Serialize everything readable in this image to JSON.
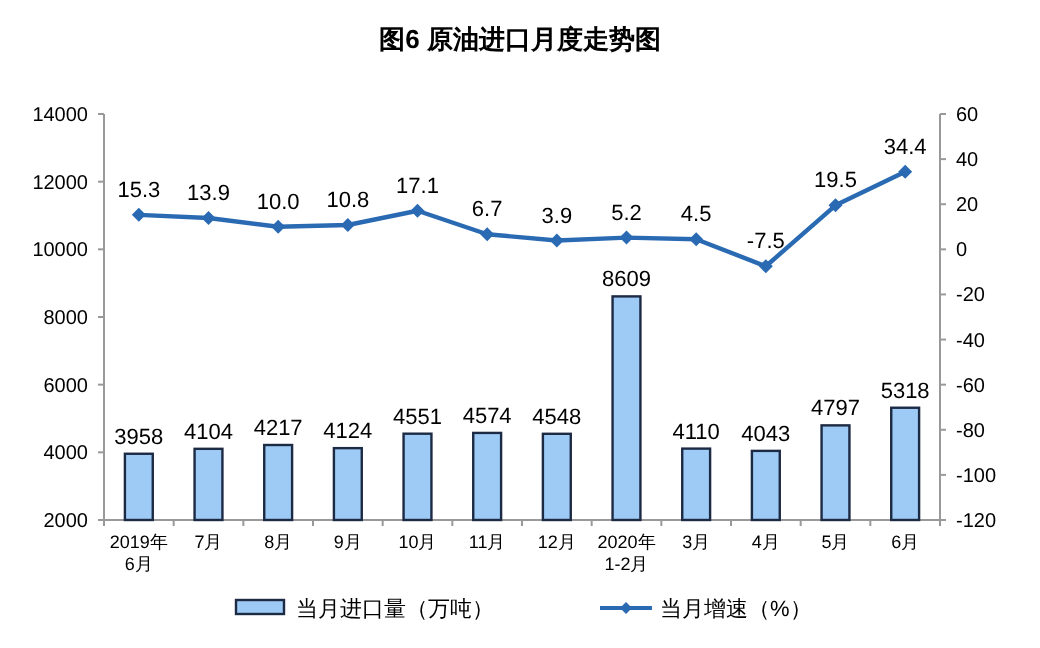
{
  "chart_data": {
    "type": "bar",
    "title": "图6  原油进口月度走势图",
    "categories": [
      "2019年\n6月",
      "7月",
      "8月",
      "9月",
      "10月",
      "11月",
      "12月",
      "2020年\n1-2月",
      "3月",
      "4月",
      "5月",
      "6月"
    ],
    "series": [
      {
        "name": "当月进口量（万吨）",
        "color": "#9dcbf5",
        "values": [
          3958,
          4104,
          4217,
          4124,
          4551,
          4574,
          4548,
          8609,
          4110,
          4043,
          4797,
          5318
        ]
      },
      {
        "name": "当月增速（%）",
        "type": "line",
        "axis": "y2",
        "color": "#2a6ab3",
        "marker": "diamond",
        "values": [
          15.3,
          13.9,
          10.0,
          10.8,
          17.1,
          6.7,
          3.9,
          5.2,
          4.5,
          -7.5,
          19.5,
          34.4
        ],
        "value_labels": [
          "15.3",
          "13.9",
          "10.0",
          "10.8",
          "17.1",
          "6.7",
          "3.9",
          "5.2",
          "4.5",
          "-7.5",
          "19.5",
          "34.4"
        ]
      }
    ],
    "ylim": [
      2000,
      14000
    ],
    "yticks": [
      2000,
      4000,
      6000,
      8000,
      10000,
      12000,
      14000
    ],
    "y2lim": [
      -120,
      60
    ],
    "y2ticks": [
      -120,
      -100,
      -80,
      -60,
      -40,
      -20,
      0,
      20,
      40,
      60
    ],
    "data_labels": true,
    "legend": "bottom",
    "grid": false
  }
}
